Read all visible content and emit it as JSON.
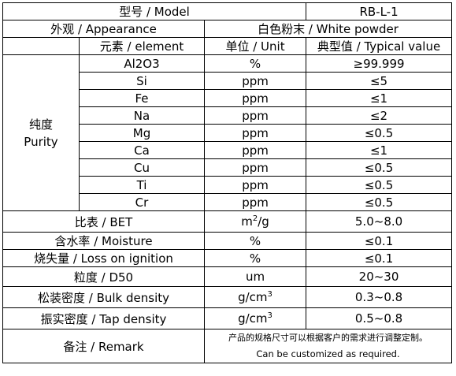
{
  "header": {
    "model_label": "型号 / Model",
    "model_value": "RB-L-1",
    "appearance_label": "外观 / Appearance",
    "appearance_value": "白色粉末 / White powder",
    "element_col": "元素 / element",
    "unit_col": "单位 / Unit",
    "value_col": "典型值 / Typical value"
  },
  "purity": {
    "label_cn": "纯度",
    "label_en": "Purity",
    "rows": [
      {
        "element": "Al2O3",
        "unit": "%",
        "value": "≥99.999"
      },
      {
        "element": "Si",
        "unit": "ppm",
        "value": "≤5"
      },
      {
        "element": "Fe",
        "unit": "ppm",
        "value": "≤1"
      },
      {
        "element": "Na",
        "unit": "ppm",
        "value": "≤2"
      },
      {
        "element": "Mg",
        "unit": "ppm",
        "value": "≤0.5"
      },
      {
        "element": "Ca",
        "unit": "ppm",
        "value": "≤1"
      },
      {
        "element": "Cu",
        "unit": "ppm",
        "value": "≤0.5"
      },
      {
        "element": "Ti",
        "unit": "ppm",
        "value": "≤0.5"
      },
      {
        "element": "Cr",
        "unit": "ppm",
        "value": "≤0.5"
      }
    ]
  },
  "properties": {
    "bet": {
      "label": "比表 / BET",
      "unit_base": "m",
      "unit_sup": "2",
      "unit_tail": "/g",
      "value": "5.0~8.0"
    },
    "moisture": {
      "label": "含水率 / Moisture",
      "unit": "%",
      "value": "≤0.1"
    },
    "loi": {
      "label": "烧失量 / Loss on ignition",
      "unit": "%",
      "value": "≤0.1"
    },
    "d50": {
      "label": "粒度 / D50",
      "unit": "um",
      "value": "20~30"
    },
    "bulk": {
      "label": "松装密度 / Bulk density",
      "unit_base": "g/cm",
      "unit_sup": "3",
      "value": "0.3~0.8"
    },
    "tap": {
      "label": "振实密度 / Tap density",
      "unit_base": "g/cm",
      "unit_sup": "3",
      "value": "0.5~0.8"
    }
  },
  "remark": {
    "label": "备注 / Remark",
    "text_cn": "产品的规格尺寸可以根据客户的需求进行调整定制。",
    "text_en": "Can be customized as required."
  }
}
